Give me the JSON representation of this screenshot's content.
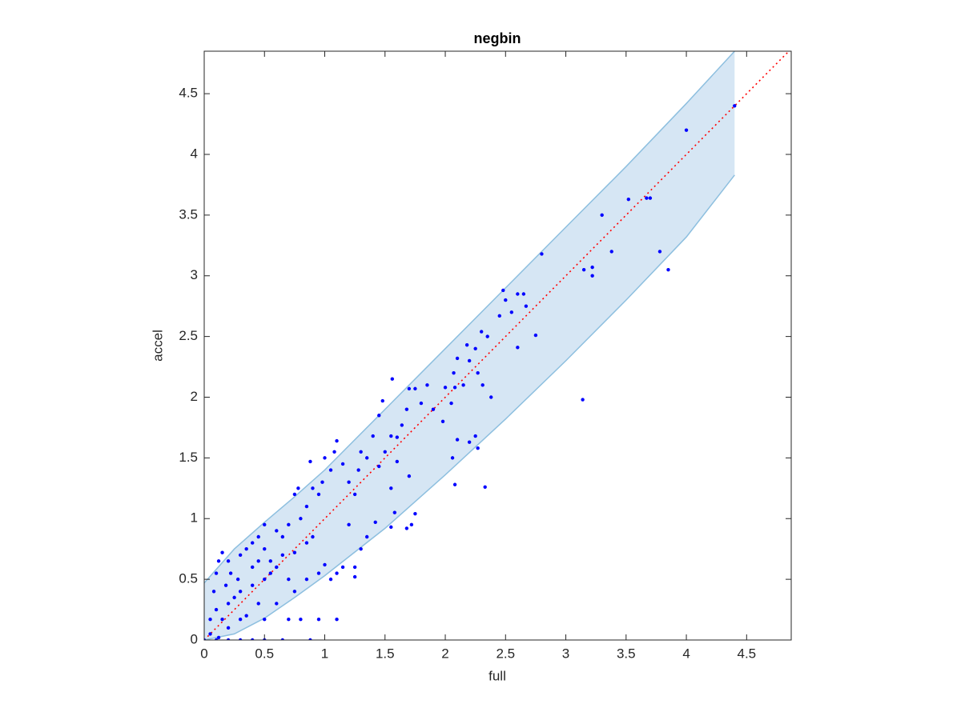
{
  "chart_data": {
    "type": "scatter",
    "title": "negbin",
    "x_label": "full",
    "y_label": "accel",
    "xlim": [
      0,
      4.87
    ],
    "ylim": [
      0,
      4.85
    ],
    "xticks": [
      0,
      0.5,
      1,
      1.5,
      2,
      2.5,
      3,
      3.5,
      4,
      4.5
    ],
    "yticks": [
      0,
      0.5,
      1,
      1.5,
      2,
      2.5,
      3,
      3.5,
      4,
      4.5
    ],
    "band": {
      "color": "#d6e6f4",
      "edge_color": "#8dbfdf",
      "x": [
        0,
        0.25,
        0.5,
        0.75,
        1,
        1.5,
        2,
        2.5,
        3,
        3.5,
        4,
        4.4
      ],
      "lower": [
        0,
        0.05,
        0.18,
        0.35,
        0.53,
        0.92,
        1.36,
        1.82,
        2.3,
        2.8,
        3.32,
        3.83
      ],
      "upper": [
        0.47,
        0.75,
        0.97,
        1.18,
        1.4,
        1.9,
        2.4,
        2.9,
        3.4,
        3.9,
        4.42,
        4.85
      ]
    },
    "reference_line": {
      "color": "#ff0000",
      "x": [
        0,
        4.87
      ],
      "values": [
        0,
        4.87
      ]
    },
    "series": [
      {
        "color": "#0000ff",
        "x": [
          4.0,
          4.4,
          3.52,
          3.67,
          3.7,
          3.3,
          3.38,
          3.78,
          3.85,
          3.15,
          3.22,
          3.22,
          3.14,
          2.8,
          2.75,
          2.48,
          2.5,
          2.55,
          2.6,
          2.65,
          2.6,
          2.67,
          2.45,
          2.35,
          2.3,
          2.25,
          2.2,
          2.18,
          2.1,
          2.15,
          2.07,
          2.05,
          2.08,
          2.0,
          2.27,
          2.31,
          2.38,
          2.25,
          2.2,
          2.27,
          2.1,
          2.06,
          2.08,
          2.33,
          1.98,
          1.9,
          1.85,
          1.8,
          1.75,
          1.7,
          1.68,
          1.64,
          1.6,
          1.55,
          1.56,
          1.48,
          1.45,
          1.5,
          1.6,
          1.7,
          1.75,
          1.72,
          1.68,
          1.58,
          1.55,
          1.55,
          1.45,
          1.4,
          1.35,
          1.3,
          1.28,
          1.25,
          1.2,
          1.15,
          1.1,
          1.08,
          1.05,
          1.0,
          0.98,
          0.95,
          0.9,
          0.88,
          0.85,
          0.78,
          0.8,
          0.75,
          1.2,
          1.3,
          1.25,
          1.35,
          1.42,
          1.1,
          1.0,
          0.95,
          1.05,
          1.15,
          1.25,
          0.7,
          0.6,
          0.5,
          0.45,
          0.4,
          0.35,
          0.3,
          0.2,
          0.15,
          0.12,
          0.9,
          0.85,
          0.75,
          0.65,
          0.6,
          0.55,
          0.5,
          0.4,
          0.3,
          0.2,
          0.1,
          0.05,
          0.15,
          0.3,
          0.5,
          0.7,
          0.8,
          0.95,
          1.1,
          0.45,
          0.6,
          0.75,
          0.85,
          0.7,
          0.35,
          0.25,
          0.4,
          0.55,
          0.0,
          0.1,
          0.2,
          0.3,
          0.4,
          0.5,
          0.65,
          0.88,
          0.05,
          0.12,
          0.2,
          0.18,
          0.08,
          0.1,
          0.65,
          0.5,
          0.45,
          0.28,
          0.22
        ],
        "values": [
          4.2,
          4.4,
          3.63,
          3.64,
          3.64,
          3.5,
          3.2,
          3.2,
          3.05,
          3.05,
          3.07,
          3.0,
          1.98,
          3.18,
          2.51,
          2.88,
          2.8,
          2.7,
          2.85,
          2.85,
          2.41,
          2.75,
          2.67,
          2.5,
          2.54,
          2.4,
          2.3,
          2.43,
          2.32,
          2.1,
          2.2,
          1.95,
          2.08,
          2.08,
          2.2,
          2.1,
          2.0,
          1.68,
          1.63,
          1.58,
          1.65,
          1.5,
          1.28,
          1.26,
          1.8,
          1.9,
          2.1,
          1.95,
          2.07,
          2.07,
          1.9,
          1.77,
          1.67,
          1.68,
          2.15,
          1.97,
          1.85,
          1.55,
          1.47,
          1.35,
          1.04,
          0.95,
          0.92,
          1.05,
          0.93,
          1.25,
          1.43,
          1.68,
          1.5,
          1.55,
          1.4,
          1.2,
          1.3,
          1.45,
          1.64,
          1.55,
          1.4,
          1.5,
          1.3,
          1.2,
          1.25,
          1.47,
          1.1,
          1.25,
          1.0,
          1.2,
          0.95,
          0.75,
          0.6,
          0.85,
          0.97,
          0.55,
          0.62,
          0.55,
          0.5,
          0.6,
          0.52,
          0.95,
          0.9,
          0.95,
          0.85,
          0.8,
          0.75,
          0.7,
          0.65,
          0.72,
          0.65,
          0.85,
          0.8,
          0.72,
          0.7,
          0.6,
          0.55,
          0.5,
          0.45,
          0.4,
          0.3,
          0.25,
          0.17,
          0.17,
          0.17,
          0.17,
          0.17,
          0.17,
          0.17,
          0.17,
          0.3,
          0.3,
          0.4,
          0.5,
          0.5,
          0.2,
          0.35,
          0.6,
          0.65,
          0.0,
          0.0,
          0.0,
          0.0,
          0.0,
          0.0,
          0.0,
          0.0,
          0.05,
          0.02,
          0.1,
          0.45,
          0.4,
          0.55,
          0.85,
          0.75,
          0.65,
          0.5,
          0.55
        ]
      }
    ]
  }
}
